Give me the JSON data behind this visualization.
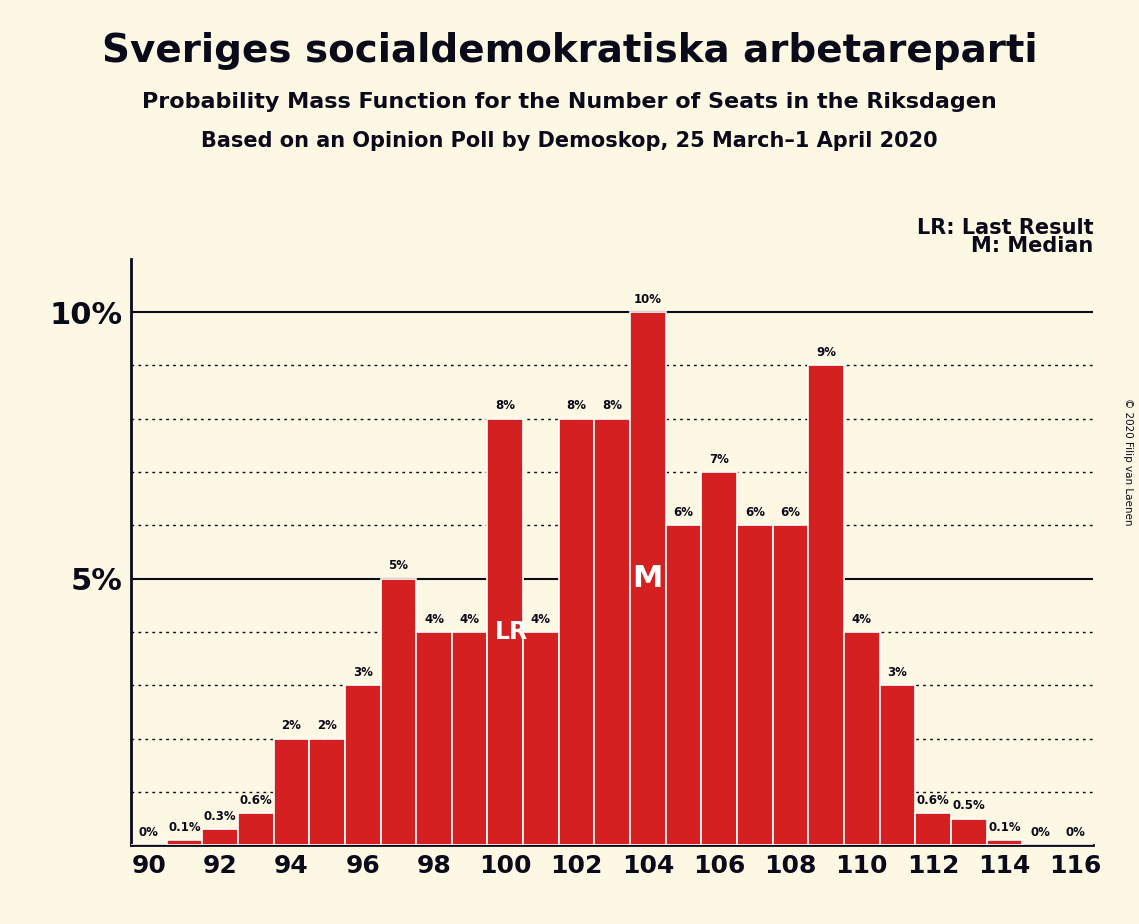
{
  "title": "Sveriges socialdemokratiska arbetareparti",
  "subtitle1": "Probability Mass Function for the Number of Seats in the Riksdagen",
  "subtitle2": "Based on an Opinion Poll by Demoskop, 25 March–1 April 2020",
  "copyright": "© 2020 Filip van Laenen",
  "seats": [
    90,
    91,
    92,
    93,
    94,
    95,
    96,
    97,
    98,
    99,
    100,
    101,
    102,
    103,
    104,
    105,
    106,
    107,
    108,
    109,
    110,
    111,
    112,
    113,
    114,
    115,
    116
  ],
  "probabilities": [
    0.0,
    0.1,
    0.3,
    0.6,
    2.0,
    2.0,
    3.0,
    5.0,
    4.0,
    4.0,
    8.0,
    4.0,
    8.0,
    8.0,
    10.0,
    6.0,
    7.0,
    6.0,
    6.0,
    9.0,
    4.0,
    3.0,
    0.6,
    0.5,
    0.1,
    0.0,
    0.0
  ],
  "bar_color": "#d42020",
  "bar_edge_color": "#ffffff",
  "background_color": "#fdf8e4",
  "text_color": "#0a0a1a",
  "lr_seat": 100,
  "median_seat": 104,
  "lr_label": "LR",
  "median_label": "M",
  "legend_lr": "LR: Last Result",
  "legend_m": "M: Median",
  "ylim_max": 11.0,
  "bar_width": 1.0,
  "xlim": [
    89.5,
    116.5
  ]
}
